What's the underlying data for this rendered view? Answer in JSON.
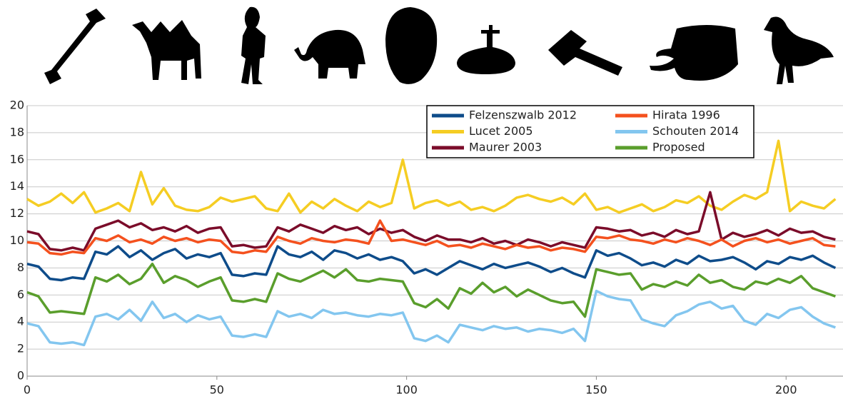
{
  "chart_data": {
    "type": "line",
    "x": [
      0,
      3,
      6,
      9,
      12,
      15,
      18,
      21,
      24,
      27,
      30,
      33,
      36,
      39,
      42,
      45,
      48,
      51,
      54,
      57,
      60,
      63,
      66,
      69,
      72,
      75,
      78,
      81,
      84,
      87,
      90,
      93,
      96,
      99,
      102,
      105,
      108,
      111,
      114,
      117,
      120,
      123,
      126,
      129,
      132,
      135,
      138,
      141,
      144,
      147,
      150,
      153,
      156,
      159,
      162,
      165,
      168,
      171,
      174,
      177,
      180,
      183,
      186,
      189,
      192,
      195,
      198,
      201,
      204,
      207,
      210,
      213
    ],
    "series": [
      {
        "name": "Felzenszwalb 2012",
        "color": "#0e4c8a",
        "values": [
          8.3,
          8.1,
          7.2,
          7.1,
          7.3,
          7.2,
          9.2,
          9.0,
          9.6,
          8.8,
          9.3,
          8.6,
          9.1,
          9.4,
          8.7,
          9.0,
          8.8,
          9.1,
          7.5,
          7.4,
          7.6,
          7.5,
          9.6,
          9.0,
          8.8,
          9.2,
          8.6,
          9.3,
          9.1,
          8.7,
          9.0,
          8.6,
          8.8,
          8.5,
          7.6,
          7.9,
          7.5,
          8.0,
          8.5,
          8.2,
          7.9,
          8.3,
          8.0,
          8.2,
          8.4,
          8.1,
          7.7,
          8.0,
          7.6,
          7.3,
          9.3,
          8.9,
          9.1,
          8.7,
          8.2,
          8.4,
          8.1,
          8.6,
          8.3,
          8.9,
          8.5,
          8.6,
          8.8,
          8.4,
          7.9,
          8.5,
          8.3,
          8.8,
          8.6,
          8.9,
          8.4,
          8.0
        ]
      },
      {
        "name": "Lucet 2005",
        "color": "#f5cd23",
        "values": [
          13.1,
          12.6,
          12.9,
          13.5,
          12.8,
          13.6,
          12.1,
          12.4,
          12.8,
          12.2,
          15.1,
          12.7,
          13.9,
          12.6,
          12.3,
          12.2,
          12.5,
          13.2,
          12.9,
          13.1,
          13.3,
          12.4,
          12.2,
          13.5,
          12.1,
          12.9,
          12.4,
          13.1,
          12.6,
          12.2,
          12.9,
          12.5,
          12.8,
          16.0,
          12.4,
          12.8,
          13.0,
          12.6,
          12.9,
          12.3,
          12.5,
          12.2,
          12.6,
          13.2,
          13.4,
          13.1,
          12.9,
          13.2,
          12.7,
          13.5,
          12.3,
          12.5,
          12.1,
          12.4,
          12.7,
          12.2,
          12.5,
          13.0,
          12.8,
          13.3,
          12.6,
          12.3,
          12.9,
          13.4,
          13.1,
          13.6,
          17.4,
          12.2,
          12.9,
          12.6,
          12.4,
          13.1
        ]
      },
      {
        "name": "Maurer 2003",
        "color": "#7b0c2a",
        "values": [
          10.7,
          10.5,
          9.4,
          9.3,
          9.5,
          9.3,
          10.9,
          11.2,
          11.5,
          11.0,
          11.3,
          10.8,
          11.0,
          10.7,
          11.1,
          10.6,
          10.9,
          11.0,
          9.6,
          9.7,
          9.5,
          9.6,
          11.0,
          10.7,
          11.2,
          10.9,
          10.6,
          11.1,
          10.8,
          11.0,
          10.5,
          10.9,
          10.6,
          10.8,
          10.3,
          10.0,
          10.4,
          10.1,
          10.1,
          9.9,
          10.2,
          9.8,
          10.0,
          9.7,
          10.1,
          9.9,
          9.6,
          9.9,
          9.7,
          9.5,
          11.0,
          10.9,
          10.7,
          10.8,
          10.4,
          10.6,
          10.3,
          10.8,
          10.5,
          10.7,
          13.6,
          10.1,
          10.6,
          10.3,
          10.5,
          10.8,
          10.4,
          10.9,
          10.6,
          10.7,
          10.3,
          10.1
        ]
      },
      {
        "name": "Hirata 1996",
        "color": "#f4511e",
        "values": [
          9.9,
          9.8,
          9.1,
          9.0,
          9.2,
          9.1,
          10.2,
          10.0,
          10.4,
          9.9,
          10.1,
          9.8,
          10.3,
          10.0,
          10.2,
          9.9,
          10.1,
          10.0,
          9.2,
          9.1,
          9.3,
          9.2,
          10.3,
          10.0,
          9.8,
          10.2,
          10.0,
          9.9,
          10.1,
          10.0,
          9.8,
          11.5,
          10.0,
          10.1,
          9.9,
          9.7,
          10.0,
          9.6,
          9.7,
          9.5,
          9.8,
          9.6,
          9.4,
          9.7,
          9.5,
          9.6,
          9.3,
          9.5,
          9.4,
          9.2,
          10.3,
          10.2,
          10.4,
          10.1,
          10.0,
          9.8,
          10.1,
          9.9,
          10.2,
          10.0,
          9.7,
          10.1,
          9.6,
          10.0,
          10.2,
          9.9,
          10.1,
          9.8,
          10.0,
          10.2,
          9.7,
          9.6
        ]
      },
      {
        "name": "Schouten 2014",
        "color": "#83c6ef",
        "values": [
          3.9,
          3.7,
          2.5,
          2.4,
          2.5,
          2.3,
          4.4,
          4.6,
          4.2,
          4.9,
          4.1,
          5.5,
          4.3,
          4.6,
          4.0,
          4.5,
          4.2,
          4.4,
          3.0,
          2.9,
          3.1,
          2.9,
          4.8,
          4.4,
          4.6,
          4.3,
          4.9,
          4.6,
          4.7,
          4.5,
          4.4,
          4.6,
          4.5,
          4.7,
          2.8,
          2.6,
          3.0,
          2.5,
          3.8,
          3.6,
          3.4,
          3.7,
          3.5,
          3.6,
          3.3,
          3.5,
          3.4,
          3.2,
          3.5,
          2.6,
          6.3,
          5.9,
          5.7,
          5.6,
          4.2,
          3.9,
          3.7,
          4.5,
          4.8,
          5.3,
          5.5,
          5.0,
          5.2,
          4.1,
          3.8,
          4.6,
          4.3,
          4.9,
          5.1,
          4.4,
          3.9,
          3.6
        ]
      },
      {
        "name": "Proposed",
        "color": "#5a9e2c",
        "values": [
          6.2,
          5.9,
          4.7,
          4.8,
          4.7,
          4.6,
          7.3,
          7.0,
          7.5,
          6.8,
          7.2,
          8.3,
          6.9,
          7.4,
          7.1,
          6.6,
          7.0,
          7.3,
          5.6,
          5.5,
          5.7,
          5.5,
          7.6,
          7.2,
          7.0,
          7.4,
          7.8,
          7.3,
          7.9,
          7.1,
          7.0,
          7.2,
          7.1,
          7.0,
          5.4,
          5.1,
          5.7,
          5.0,
          6.5,
          6.1,
          6.9,
          6.2,
          6.6,
          5.9,
          6.4,
          6.0,
          5.6,
          5.4,
          5.5,
          4.4,
          7.9,
          7.7,
          7.5,
          7.6,
          6.4,
          6.8,
          6.6,
          7.0,
          6.7,
          7.5,
          6.9,
          7.1,
          6.6,
          6.4,
          7.0,
          6.8,
          7.2,
          6.9,
          7.4,
          6.5,
          6.2,
          5.9
        ]
      }
    ],
    "xlim": [
      0,
      215
    ],
    "xticks": [
      0,
      50,
      100,
      150,
      200
    ],
    "ylim": [
      0,
      20
    ],
    "yticks": [
      0,
      2,
      4,
      6,
      8,
      10,
      12,
      14,
      16,
      18,
      20
    ],
    "grid": true,
    "legend": "top-right"
  }
}
